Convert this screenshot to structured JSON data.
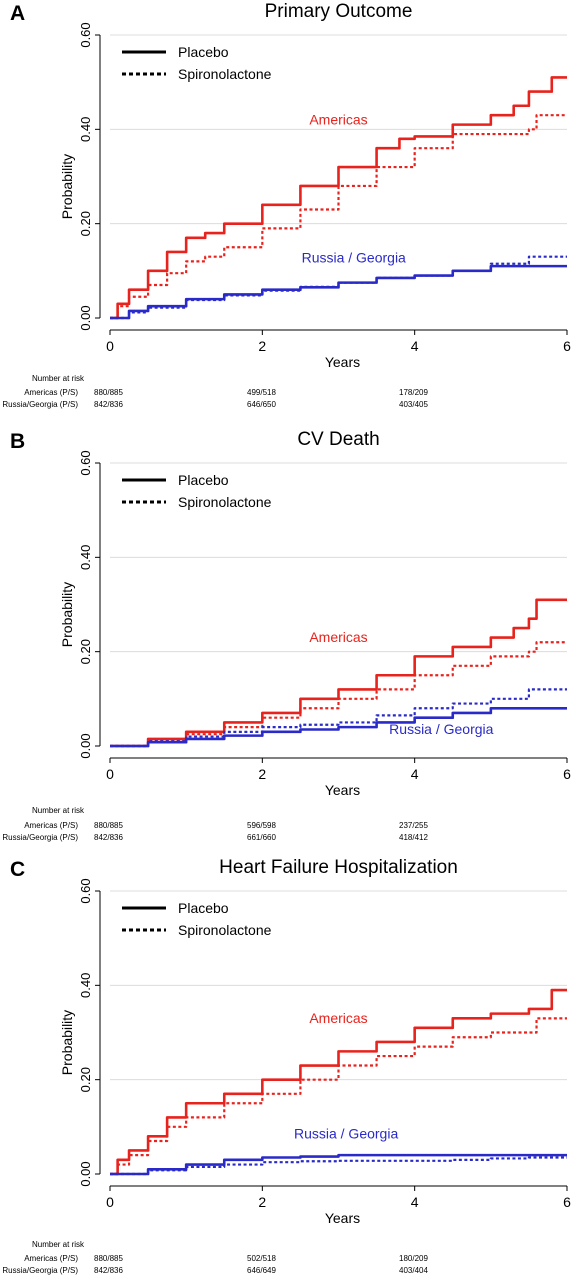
{
  "chart_data": [
    {
      "type": "line",
      "panel_letter": "A",
      "title": "Primary Outcome",
      "xlabel": "Years",
      "ylabel": "Probability",
      "xlim": [
        0,
        6
      ],
      "ylim": [
        0,
        0.6
      ],
      "xticks": [
        "0",
        "2",
        "4",
        "6"
      ],
      "yticks": [
        "0.00",
        "0.20",
        "0.40",
        "0.60"
      ],
      "legend": {
        "position": "top-left",
        "entries": [
          {
            "label": "Placebo",
            "style": "solid"
          },
          {
            "label": "Spironolactone",
            "style": "dotted"
          }
        ]
      },
      "annotations": [
        {
          "text": "Americas",
          "color": "#e8231d",
          "x": 3.0,
          "y": 0.41
        },
        {
          "text": "Russia / Georgia",
          "color": "#2a2ac8",
          "x": 3.2,
          "y": 0.118
        }
      ],
      "series": [
        {
          "group": "Americas",
          "arm": "Placebo",
          "color": "#e8231d",
          "style": "solid",
          "x": [
            0,
            0.1,
            0.25,
            0.5,
            0.75,
            1.0,
            1.25,
            1.5,
            2.0,
            2.5,
            3.0,
            3.5,
            3.8,
            4.0,
            4.5,
            5.0,
            5.3,
            5.5,
            5.8,
            6.0
          ],
          "y": [
            0,
            0.03,
            0.06,
            0.1,
            0.14,
            0.17,
            0.18,
            0.2,
            0.24,
            0.28,
            0.32,
            0.36,
            0.38,
            0.385,
            0.41,
            0.43,
            0.45,
            0.48,
            0.51,
            0.51
          ]
        },
        {
          "group": "Americas",
          "arm": "Spironolactone",
          "color": "#e8231d",
          "style": "dotted",
          "x": [
            0,
            0.1,
            0.25,
            0.5,
            0.75,
            1.0,
            1.25,
            1.5,
            2.0,
            2.5,
            3.0,
            3.5,
            4.0,
            4.5,
            5.0,
            5.5,
            5.6,
            6.0
          ],
          "y": [
            0,
            0.025,
            0.045,
            0.07,
            0.095,
            0.12,
            0.13,
            0.15,
            0.19,
            0.23,
            0.28,
            0.32,
            0.36,
            0.39,
            0.39,
            0.4,
            0.43,
            0.43
          ]
        },
        {
          "group": "Russia / Georgia",
          "arm": "Placebo",
          "color": "#2a2ac8",
          "style": "solid",
          "x": [
            0,
            0.25,
            0.5,
            1.0,
            1.5,
            2.0,
            2.5,
            3.0,
            3.5,
            4.0,
            4.5,
            5.0,
            5.5,
            6.0
          ],
          "y": [
            0,
            0.015,
            0.025,
            0.04,
            0.05,
            0.06,
            0.065,
            0.075,
            0.085,
            0.09,
            0.1,
            0.11,
            0.11,
            0.11
          ]
        },
        {
          "group": "Russia / Georgia",
          "arm": "Spironolactone",
          "color": "#2a2ac8",
          "style": "dotted",
          "x": [
            0,
            0.25,
            0.5,
            1.0,
            1.5,
            2.0,
            2.5,
            3.0,
            3.5,
            4.0,
            4.5,
            5.0,
            5.5,
            6.0
          ],
          "y": [
            0,
            0.012,
            0.022,
            0.038,
            0.048,
            0.058,
            0.066,
            0.075,
            0.085,
            0.09,
            0.1,
            0.115,
            0.13,
            0.13
          ]
        }
      ]
    },
    {
      "type": "line",
      "panel_letter": "B",
      "title": "CV Death",
      "xlabel": "Years",
      "ylabel": "Probability",
      "xlim": [
        0,
        6
      ],
      "ylim": [
        0,
        0.6
      ],
      "xticks": [
        "0",
        "2",
        "4",
        "6"
      ],
      "yticks": [
        "0.00",
        "0.20",
        "0.40",
        "0.60"
      ],
      "legend": {
        "position": "top-left",
        "entries": [
          {
            "label": "Placebo",
            "style": "solid"
          },
          {
            "label": "Spironolactone",
            "style": "dotted"
          }
        ]
      },
      "annotations": [
        {
          "text": "Americas",
          "color": "#e8231d",
          "x": 3.0,
          "y": 0.22
        },
        {
          "text": "Russia / Georgia",
          "color": "#2a2ac8",
          "x": 4.35,
          "y": 0.025
        }
      ],
      "series": [
        {
          "group": "Americas",
          "arm": "Placebo",
          "color": "#e8231d",
          "style": "solid",
          "x": [
            0,
            0.5,
            1.0,
            1.5,
            2.0,
            2.5,
            3.0,
            3.5,
            4.0,
            4.5,
            5.0,
            5.3,
            5.5,
            5.6,
            6.0
          ],
          "y": [
            0,
            0.015,
            0.03,
            0.05,
            0.07,
            0.1,
            0.12,
            0.15,
            0.19,
            0.21,
            0.23,
            0.25,
            0.27,
            0.31,
            0.31
          ]
        },
        {
          "group": "Americas",
          "arm": "Spironolactone",
          "color": "#e8231d",
          "style": "dotted",
          "x": [
            0,
            0.5,
            1.0,
            1.5,
            2.0,
            2.5,
            3.0,
            3.5,
            4.0,
            4.5,
            5.0,
            5.5,
            5.6,
            6.0
          ],
          "y": [
            0,
            0.01,
            0.025,
            0.04,
            0.06,
            0.08,
            0.1,
            0.12,
            0.15,
            0.17,
            0.19,
            0.2,
            0.22,
            0.22
          ]
        },
        {
          "group": "Russia / Georgia",
          "arm": "Placebo",
          "color": "#2a2ac8",
          "style": "solid",
          "x": [
            0,
            0.5,
            1.0,
            1.5,
            2.0,
            2.5,
            3.0,
            3.5,
            4.0,
            4.5,
            5.0,
            5.5,
            6.0
          ],
          "y": [
            0,
            0.008,
            0.015,
            0.022,
            0.03,
            0.035,
            0.04,
            0.05,
            0.06,
            0.07,
            0.08,
            0.08,
            0.08
          ]
        },
        {
          "group": "Russia / Georgia",
          "arm": "Spironolactone",
          "color": "#2a2ac8",
          "style": "dotted",
          "x": [
            0,
            0.5,
            1.0,
            1.5,
            2.0,
            2.5,
            3.0,
            3.5,
            4.0,
            4.5,
            5.0,
            5.5,
            6.0
          ],
          "y": [
            0,
            0.01,
            0.02,
            0.03,
            0.04,
            0.045,
            0.05,
            0.065,
            0.08,
            0.09,
            0.1,
            0.12,
            0.12
          ]
        }
      ]
    },
    {
      "type": "line",
      "panel_letter": "C",
      "title": "Heart Failure Hospitalization",
      "xlabel": "Years",
      "ylabel": "Probability",
      "xlim": [
        0,
        6
      ],
      "ylim": [
        0,
        0.6
      ],
      "xticks": [
        "0",
        "2",
        "4",
        "6"
      ],
      "yticks": [
        "0.00",
        "0.20",
        "0.40",
        "0.60"
      ],
      "legend": {
        "position": "top-left",
        "entries": [
          {
            "label": "Placebo",
            "style": "solid"
          },
          {
            "label": "Spironolactone",
            "style": "dotted"
          }
        ]
      },
      "annotations": [
        {
          "text": "Americas",
          "color": "#e8231d",
          "x": 3.0,
          "y": 0.32
        },
        {
          "text": "Russia / Georgia",
          "color": "#2a2ac8",
          "x": 3.1,
          "y": 0.075
        }
      ],
      "series": [
        {
          "group": "Americas",
          "arm": "Placebo",
          "color": "#e8231d",
          "style": "solid",
          "x": [
            0,
            0.1,
            0.25,
            0.5,
            0.75,
            1.0,
            1.5,
            2.0,
            2.5,
            3.0,
            3.5,
            4.0,
            4.5,
            5.0,
            5.5,
            5.8,
            6.0
          ],
          "y": [
            0,
            0.03,
            0.05,
            0.08,
            0.12,
            0.15,
            0.17,
            0.2,
            0.23,
            0.26,
            0.28,
            0.31,
            0.33,
            0.34,
            0.35,
            0.39,
            0.39
          ]
        },
        {
          "group": "Americas",
          "arm": "Spironolactone",
          "color": "#e8231d",
          "style": "dotted",
          "x": [
            0,
            0.1,
            0.25,
            0.5,
            0.75,
            1.0,
            1.5,
            2.0,
            2.5,
            3.0,
            3.5,
            4.0,
            4.5,
            5.0,
            5.5,
            5.6,
            6.0
          ],
          "y": [
            0,
            0.02,
            0.04,
            0.07,
            0.1,
            0.12,
            0.15,
            0.17,
            0.2,
            0.23,
            0.25,
            0.27,
            0.29,
            0.3,
            0.3,
            0.33,
            0.33
          ]
        },
        {
          "group": "Russia / Georgia",
          "arm": "Placebo",
          "color": "#2a2ac8",
          "style": "solid",
          "x": [
            0,
            0.5,
            1.0,
            1.5,
            2.0,
            2.5,
            3.0,
            3.5,
            4.0,
            4.5,
            5.0,
            5.5,
            6.0
          ],
          "y": [
            0,
            0.01,
            0.02,
            0.03,
            0.035,
            0.037,
            0.04,
            0.04,
            0.04,
            0.04,
            0.04,
            0.04,
            0.04
          ]
        },
        {
          "group": "Russia / Georgia",
          "arm": "Spironolactone",
          "color": "#2a2ac8",
          "style": "dotted",
          "x": [
            0,
            0.5,
            1.0,
            1.5,
            2.0,
            2.5,
            3.0,
            3.5,
            4.0,
            4.5,
            5.0,
            5.5,
            6.0
          ],
          "y": [
            0,
            0.008,
            0.015,
            0.02,
            0.025,
            0.027,
            0.028,
            0.028,
            0.028,
            0.03,
            0.033,
            0.035,
            0.035
          ]
        }
      ]
    }
  ],
  "risk_tables": [
    {
      "header": "Number at risk",
      "rows": [
        {
          "label": "Americas (P/S)",
          "values": [
            "880/885",
            "499/518",
            "178/209"
          ]
        },
        {
          "label": "Russia/Georgia (P/S)",
          "values": [
            "842/836",
            "646/650",
            "403/405"
          ]
        }
      ]
    },
    {
      "header": "Number at risk",
      "rows": [
        {
          "label": "Americas (P/S)",
          "values": [
            "880/885",
            "596/598",
            "237/255"
          ]
        },
        {
          "label": "Russia/Georgia (P/S)",
          "values": [
            "842/836",
            "661/660",
            "418/412"
          ]
        }
      ]
    },
    {
      "header": "Number at risk",
      "rows": [
        {
          "label": "Americas (P/S)",
          "values": [
            "880/885",
            "502/518",
            "180/209"
          ]
        },
        {
          "label": "Russia/Georgia (P/S)",
          "values": [
            "842/836",
            "646/649",
            "403/404"
          ]
        }
      ]
    }
  ]
}
